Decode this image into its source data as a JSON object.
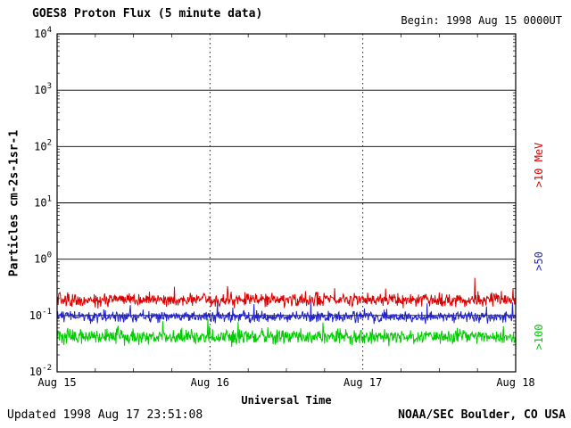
{
  "header": {
    "title": "GOES8 Proton Flux (5 minute data)",
    "begin": "Begin: 1998 Aug 15 0000UT"
  },
  "footer": {
    "updated": "Updated 1998 Aug 17 23:51:08",
    "source": "NOAA/SEC Boulder, CO USA"
  },
  "chart_data": {
    "type": "line",
    "title": "GOES8 Proton Flux (5 minute data)",
    "subtitle": "Begin: 1998 Aug 15 0000UT",
    "xlabel": "Universal Time",
    "ylabel": "Particles cm-2s-1sr-1",
    "x_ticks": [
      "Aug 15",
      "Aug 16",
      "Aug 17",
      "Aug 18"
    ],
    "x_range_days": 3,
    "points_per_day": 288,
    "y_scale": "log10",
    "ylim_log10": [
      -2,
      4
    ],
    "y_ticks_exponents": [
      4,
      3,
      2,
      1,
      0,
      -1,
      -2
    ],
    "grid": {
      "horizontal": "solid",
      "vertical_day_lines": "dashed"
    },
    "legend_position": "right-rotated",
    "series": [
      {
        "name": ">10 MeV",
        "color": "#dd0000",
        "mean_flux": 0.19,
        "approx_range": [
          0.13,
          0.35
        ],
        "log10_mean": -0.72,
        "log10_spread": 0.16
      },
      {
        "name": ">50",
        "color": "#2222cc",
        "mean_flux": 0.1,
        "approx_range": [
          0.06,
          0.15
        ],
        "log10_mean": -1.02,
        "log10_spread": 0.13
      },
      {
        "name": ">100",
        "color": "#00cc00",
        "mean_flux": 0.042,
        "approx_range": [
          0.025,
          0.08
        ],
        "log10_mean": -1.38,
        "log10_spread": 0.17
      }
    ]
  }
}
